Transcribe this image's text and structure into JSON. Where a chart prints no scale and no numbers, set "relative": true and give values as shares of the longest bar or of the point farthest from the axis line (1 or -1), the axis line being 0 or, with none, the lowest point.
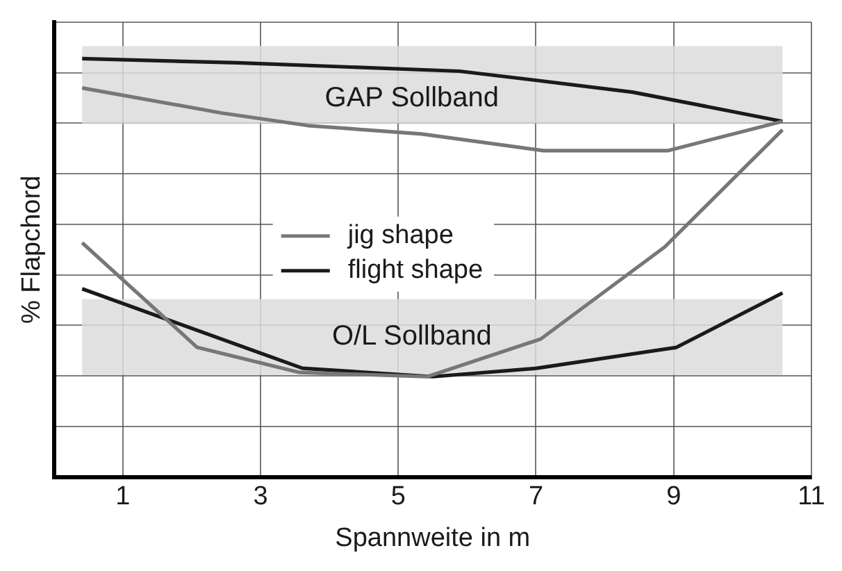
{
  "chart_data": {
    "type": "line",
    "relative": true,
    "xlabel": "Spannweite in m",
    "ylabel": "% Flapchord",
    "xlim": [
      0,
      11
    ],
    "xticks": [
      1,
      3,
      5,
      7,
      9,
      11
    ],
    "grid": true,
    "legend": "center",
    "series": [
      {
        "name": "jig shape",
        "color": "#777777",
        "x": [
          0.41,
          2.44,
          3.69,
          5.34,
          7.11,
          8.91,
          10.58
        ],
        "values": [
          0.93,
          0.87,
          0.84,
          0.82,
          0.78,
          0.78,
          0.85
        ]
      },
      {
        "name": "flight shape",
        "color": "#1a1a1a",
        "x": [
          0.41,
          2.67,
          5.89,
          6.91,
          8.4,
          9.34,
          10.58
        ],
        "values": [
          1.0,
          0.99,
          0.97,
          0.95,
          0.92,
          0.89,
          0.85
        ]
      },
      {
        "color": "#777777",
        "x": [
          0.41,
          2.08,
          3.57,
          5.42,
          7.07,
          8.87,
          10.58
        ],
        "values": [
          0.56,
          0.31,
          0.25,
          0.24,
          0.33,
          0.55,
          0.83
        ]
      },
      {
        "color": "#1a1a1a",
        "x": [
          0.41,
          3.61,
          5.5,
          7.01,
          9.04,
          10.58
        ],
        "values": [
          0.45,
          0.26,
          0.24,
          0.26,
          0.31,
          0.44
        ]
      }
    ],
    "bands": [
      {
        "axis": "y",
        "from": 0.845,
        "to": 1.03,
        "label": "GAP Sollband",
        "color": "#dcdcdc"
      },
      {
        "axis": "y",
        "from": 0.244,
        "to": 0.425,
        "label": "O/L Sollband",
        "color": "#dcdcdc"
      }
    ]
  }
}
